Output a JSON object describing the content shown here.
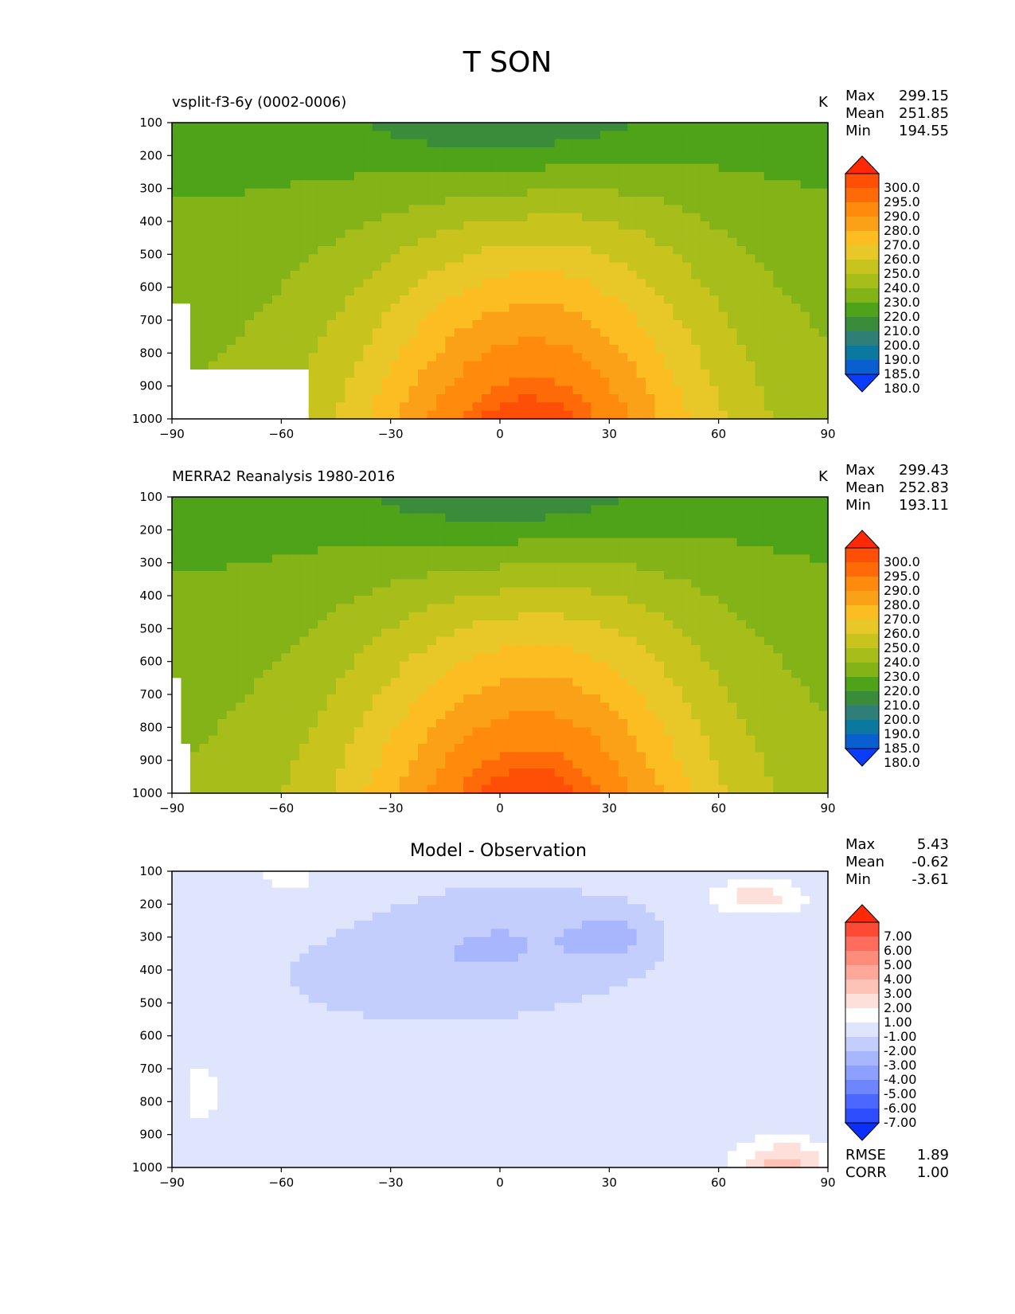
{
  "figure": {
    "title": "T SON"
  },
  "panels": [
    {
      "id": "model",
      "subtitle": "vsplit-f3-6y (0002-0006)",
      "units": "K",
      "stats": [
        {
          "label": "Max",
          "value": "299.15"
        },
        {
          "label": "Mean",
          "value": "251.85"
        },
        {
          "label": "Min",
          "value": "194.55"
        }
      ],
      "colorbar": {
        "labels": [
          "300.0",
          "295.0",
          "290.0",
          "280.0",
          "270.0",
          "260.0",
          "250.0",
          "240.0",
          "230.0",
          "220.0",
          "210.0",
          "200.0",
          "190.0",
          "185.0",
          "180.0"
        ],
        "colors": [
          "#ff2a05",
          "#ff4e06",
          "#ff6a08",
          "#ff8a0b",
          "#fba118",
          "#fbbd22",
          "#e8c728",
          "#c9c31e",
          "#a6bd1a",
          "#83b316",
          "#4fa319",
          "#3b8c3a",
          "#2f7f78",
          "#0b78a0",
          "#0a5fd0",
          "#0a3cff"
        ],
        "extend": "both"
      },
      "chart_data": {
        "type": "heatmap",
        "xlabel": "",
        "ylabel": "",
        "xlim": [
          -90,
          90
        ],
        "ylim": [
          1000,
          100
        ],
        "xticks": [
          -90,
          -60,
          -30,
          0,
          30,
          60,
          90
        ],
        "yticks": [
          100,
          200,
          300,
          400,
          500,
          600,
          700,
          800,
          900,
          1000
        ],
        "variable": "T",
        "season": "SON",
        "units": "K",
        "max": 299.15,
        "mean": 251.85,
        "min": 194.55
      }
    },
    {
      "id": "obs",
      "subtitle": "MERRA2 Reanalysis 1980-2016",
      "units": "K",
      "stats": [
        {
          "label": "Max",
          "value": "299.43"
        },
        {
          "label": "Mean",
          "value": "252.83"
        },
        {
          "label": "Min",
          "value": "193.11"
        }
      ],
      "colorbar": {
        "labels": [
          "300.0",
          "295.0",
          "290.0",
          "280.0",
          "270.0",
          "260.0",
          "250.0",
          "240.0",
          "230.0",
          "220.0",
          "210.0",
          "200.0",
          "190.0",
          "185.0",
          "180.0"
        ],
        "colors": [
          "#ff2a05",
          "#ff4e06",
          "#ff6a08",
          "#ff8a0b",
          "#fba118",
          "#fbbd22",
          "#e8c728",
          "#c9c31e",
          "#a6bd1a",
          "#83b316",
          "#4fa319",
          "#3b8c3a",
          "#2f7f78",
          "#0b78a0",
          "#0a5fd0",
          "#0a3cff"
        ],
        "extend": "both"
      },
      "chart_data": {
        "type": "heatmap",
        "xlabel": "",
        "ylabel": "",
        "xlim": [
          -90,
          90
        ],
        "ylim": [
          1000,
          100
        ],
        "xticks": [
          -90,
          -60,
          -30,
          0,
          30,
          60,
          90
        ],
        "yticks": [
          100,
          200,
          300,
          400,
          500,
          600,
          700,
          800,
          900,
          1000
        ],
        "variable": "T",
        "season": "SON",
        "units": "K",
        "max": 299.43,
        "mean": 252.83,
        "min": 193.11
      }
    },
    {
      "id": "diff",
      "title": "Model - Observation",
      "stats": [
        {
          "label": "Max",
          "value": "5.43"
        },
        {
          "label": "Mean",
          "value": "-0.62"
        },
        {
          "label": "Min",
          "value": "-3.61"
        }
      ],
      "metrics": [
        {
          "label": "RMSE",
          "value": "1.89"
        },
        {
          "label": "CORR",
          "value": "1.00"
        }
      ],
      "colorbar": {
        "labels": [
          "7.00",
          "6.00",
          "5.00",
          "4.00",
          "3.00",
          "2.00",
          "1.00",
          "-1.00",
          "-2.00",
          "-3.00",
          "-4.00",
          "-5.00",
          "-6.00",
          "-7.00"
        ],
        "colors": [
          "#ff2a05",
          "#fe4a35",
          "#fd6c5c",
          "#fd8c7a",
          "#fda89a",
          "#fec2b7",
          "#fee0da",
          "#ffffff",
          "#dfe5fd",
          "#c4cefd",
          "#a8b7fd",
          "#8da0fd",
          "#6e85fd",
          "#4c67fd",
          "#2d4dfe",
          "#0a30ff"
        ],
        "extend": "both"
      },
      "chart_data": {
        "type": "heatmap",
        "xlabel": "",
        "ylabel": "",
        "xlim": [
          -90,
          90
        ],
        "ylim": [
          1000,
          100
        ],
        "xticks": [
          -90,
          -60,
          -30,
          0,
          30,
          60,
          90
        ],
        "yticks": [
          100,
          200,
          300,
          400,
          500,
          600,
          700,
          800,
          900,
          1000
        ],
        "max": 5.43,
        "mean": -0.62,
        "min": -3.61,
        "rmse": 1.89,
        "corr": 1.0
      }
    }
  ]
}
